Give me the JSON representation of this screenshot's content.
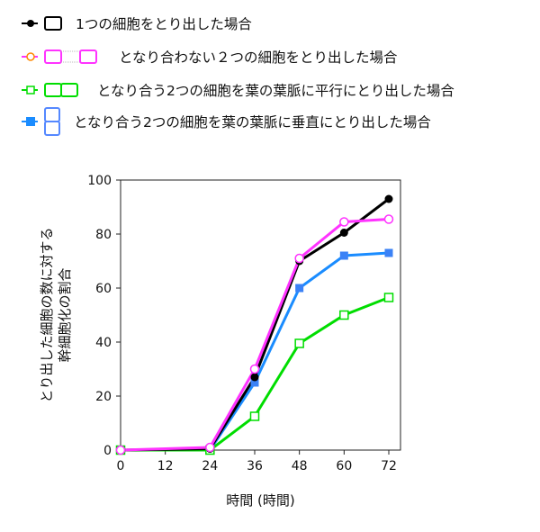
{
  "chart_data": {
    "type": "line",
    "x": [
      0,
      24,
      36,
      48,
      60,
      72
    ],
    "xticks": [
      "0",
      "12",
      "24",
      "36",
      "48",
      "60",
      "72"
    ],
    "yticks": [
      "0",
      "20",
      "40",
      "60",
      "80",
      "100"
    ],
    "xlim": [
      0,
      72
    ],
    "ylim": [
      0,
      100
    ],
    "xlabel": "時間 (時間)",
    "ylabel": [
      "とり出した細胞の数に対する",
      "幹細胞化の割合"
    ],
    "legend_position": "top",
    "series": [
      {
        "name": "1つの細胞をとり出した場合",
        "color": "#000000",
        "marker": "filled-circle",
        "values": [
          0,
          0.5,
          27,
          70,
          80.5,
          93
        ]
      },
      {
        "name": "となり合わない２つの細胞をとり出した場合",
        "color": "#ff33ff",
        "marker": "open-circle",
        "values": [
          0,
          1,
          30,
          71,
          84.5,
          85.5
        ]
      },
      {
        "name": "となり合う2つの細胞を葉の葉脈に平行にとり出した場合",
        "color": "#00dd00",
        "marker": "open-square",
        "values": [
          0,
          0,
          12.5,
          39.5,
          50,
          56.5
        ]
      },
      {
        "name": "となり合う2つの細胞を葉の葉脈に垂直にとり出した場合",
        "color": "#1a8cff",
        "marker": "filled-square",
        "values": [
          0,
          0,
          25,
          60,
          72,
          73
        ]
      }
    ]
  }
}
